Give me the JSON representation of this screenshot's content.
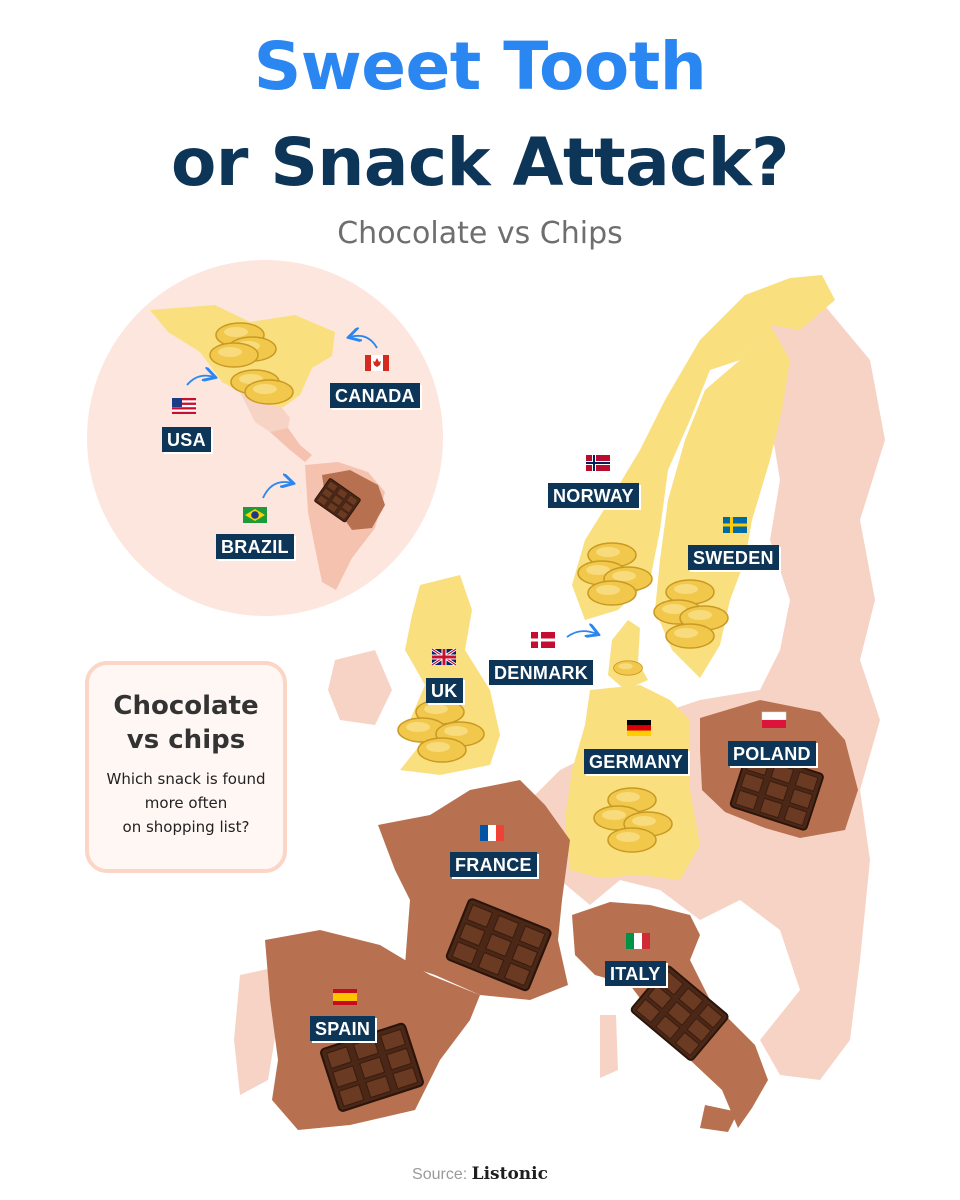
{
  "title": {
    "line1": "Sweet Tooth",
    "line2": "or Snack Attack?",
    "subtitle": "Chocolate vs Chips"
  },
  "legend": {
    "title_line1": "Chocolate",
    "title_line2": "vs chips",
    "text_line1": "Which snack is found",
    "text_line2": "more often",
    "text_line3": "on shopping list?"
  },
  "source": {
    "prefix": "Source:",
    "name": "Listonic"
  },
  "colors": {
    "chips_region": "#fadf7e",
    "chocolate_region": "#b87150",
    "other_region": "#f7d3c5",
    "inset_circle": "#fde6de",
    "label_bg": "#0d3557",
    "title_blue": "#2a86f0",
    "title_navy": "#0d3557"
  },
  "countries": [
    {
      "name": "USA",
      "flag": "us-flag-icon",
      "snack": "chips"
    },
    {
      "name": "CANADA",
      "flag": "canada-flag-icon",
      "snack": "chips"
    },
    {
      "name": "BRAZIL",
      "flag": "brazil-flag-icon",
      "snack": "chocolate"
    },
    {
      "name": "NORWAY",
      "flag": "norway-flag-icon",
      "snack": "chips"
    },
    {
      "name": "SWEDEN",
      "flag": "sweden-flag-icon",
      "snack": "chips"
    },
    {
      "name": "DENMARK",
      "flag": "denmark-flag-icon",
      "snack": "chips"
    },
    {
      "name": "UK",
      "flag": "uk-flag-icon",
      "snack": "chips"
    },
    {
      "name": "GERMANY",
      "flag": "germany-flag-icon",
      "snack": "chips"
    },
    {
      "name": "POLAND",
      "flag": "poland-flag-icon",
      "snack": "chocolate"
    },
    {
      "name": "FRANCE",
      "flag": "france-flag-icon",
      "snack": "chocolate"
    },
    {
      "name": "ITALY",
      "flag": "italy-flag-icon",
      "snack": "chocolate"
    },
    {
      "name": "SPAIN",
      "flag": "spain-flag-icon",
      "snack": "chocolate"
    }
  ]
}
